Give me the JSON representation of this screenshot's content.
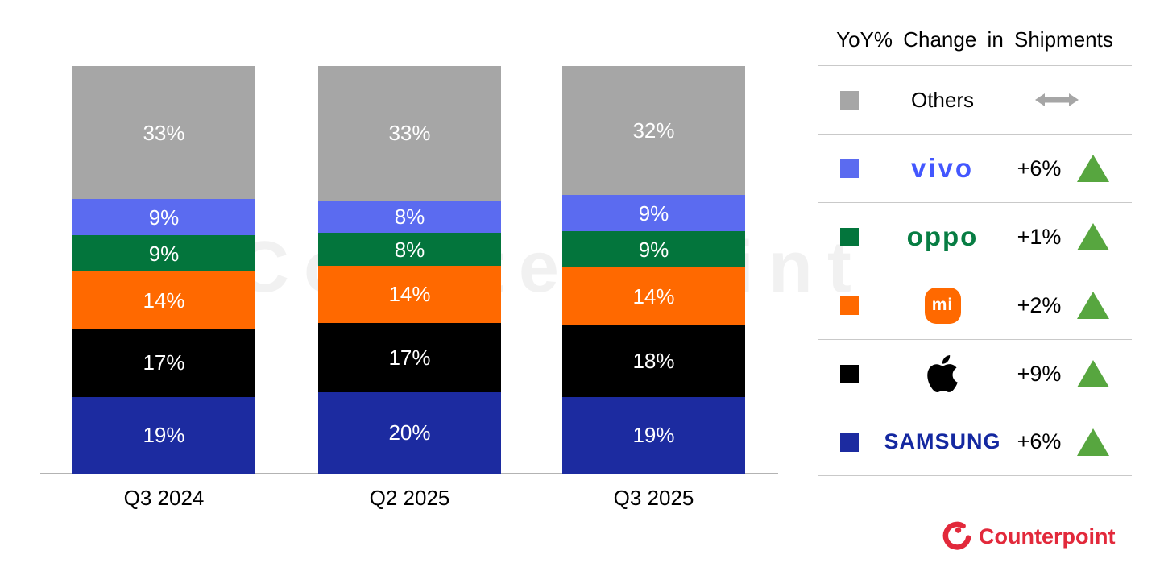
{
  "chart_data": {
    "type": "bar",
    "stacked": true,
    "title": "",
    "categories": [
      "Q3 2024",
      "Q2 2025",
      "Q3 2025"
    ],
    "series_order": "bottom-up",
    "series": [
      {
        "name": "Samsung",
        "color": "#1C2BA0",
        "values": [
          19,
          20,
          19
        ]
      },
      {
        "name": "Apple",
        "color": "#000000",
        "values": [
          17,
          17,
          18
        ]
      },
      {
        "name": "Xiaomi",
        "color": "#FF6900",
        "values": [
          14,
          14,
          14
        ]
      },
      {
        "name": "OPPO",
        "color": "#03753C",
        "values": [
          9,
          8,
          9
        ]
      },
      {
        "name": "vivo",
        "color": "#5B6BF0",
        "values": [
          9,
          8,
          9
        ]
      },
      {
        "name": "Others",
        "color": "#A6A6A6",
        "values": [
          33,
          33,
          32
        ]
      }
    ],
    "unit": "%",
    "value_labels": true,
    "legend_position": "right",
    "grid": false
  },
  "legend": {
    "title": "YoY% Change in Shipments",
    "rows": [
      {
        "brand": "Others",
        "label": "Others",
        "change": "",
        "trend": "flat"
      },
      {
        "brand": "vivo",
        "label": "vivo",
        "change": "+6%",
        "trend": "up"
      },
      {
        "brand": "OPPO",
        "label": "oppo",
        "change": "+1%",
        "trend": "up"
      },
      {
        "brand": "Xiaomi",
        "label": "mi",
        "change": "+2%",
        "trend": "up"
      },
      {
        "brand": "Apple",
        "label": "",
        "change": "+9%",
        "trend": "up"
      },
      {
        "brand": "Samsung",
        "label": "SAMSUNG",
        "change": "+6%",
        "trend": "up"
      }
    ]
  },
  "colors": {
    "trend_up": "#57A63F",
    "neutral": "#A6A6A6",
    "axis": "#B3B3B3",
    "divider": "#C9C9C9",
    "counterpoint_red": "#E2293B",
    "vivo_logo": "#4357FF",
    "oppo_logo": "#077D43",
    "mi_logo_bg": "#FF6900",
    "samsung_logo": "#1428A0",
    "bar_label": "#FFFFFF"
  },
  "watermark": {
    "text": "Counterpoint"
  },
  "footer": {
    "brand": "Counterpoint"
  }
}
